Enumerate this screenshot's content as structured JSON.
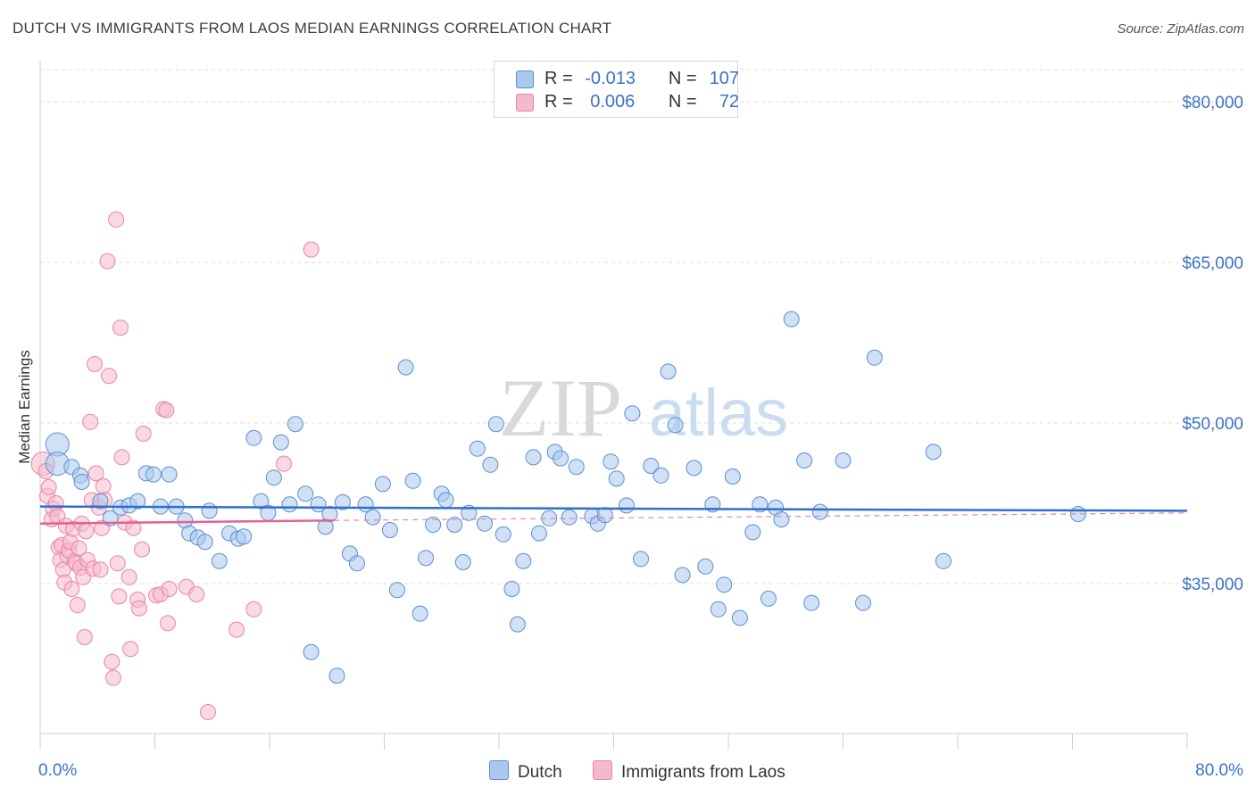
{
  "title": "DUTCH VS IMMIGRANTS FROM LAOS MEDIAN EARNINGS CORRELATION CHART",
  "source": "Source: ZipAtlas.com",
  "watermark": {
    "zip": "ZIP",
    "atlas": "atlas"
  },
  "legend": {
    "rows": [
      {
        "r_label": "R =",
        "r_value": "-0.013",
        "n_label": "N =",
        "n_value": "107"
      },
      {
        "r_label": "R =",
        "r_value": "0.006",
        "n_label": "N =",
        "n_value": "72"
      }
    ]
  },
  "colors": {
    "dutch_fill": "#a9c8ec",
    "dutch_stroke": "#5b8fd1",
    "dutch_line": "#2f6fd0",
    "laos_fill": "#f5b9cc",
    "laos_stroke": "#e884a5",
    "laos_line": "#e5618f",
    "axis_text": "#3b73c4",
    "grid": "#dcdcdc"
  },
  "chart_data": {
    "type": "scatter",
    "title": "DUTCH VS IMMIGRANTS FROM LAOS MEDIAN EARNINGS CORRELATION CHART",
    "xlabel": "",
    "ylabel": "Median Earnings",
    "xlim": [
      0,
      80
    ],
    "ylim": [
      21000,
      83000
    ],
    "x_tick_labels": [
      "0.0%",
      "80.0%"
    ],
    "y_ticks": [
      35000,
      50000,
      65000,
      80000
    ],
    "y_tick_labels": [
      "$35,000",
      "$50,000",
      "$65,000",
      "$80,000"
    ],
    "grid": "horizontal dashed",
    "legend_position": "top-center",
    "series": [
      {
        "name": "Dutch",
        "r": -0.013,
        "n": 107,
        "trend": {
          "x": [
            0,
            80
          ],
          "y": [
            42200,
            41800
          ]
        },
        "points": [
          [
            1.2,
            48000
          ],
          [
            1.2,
            46200
          ],
          [
            2.2,
            45900
          ],
          [
            2.8,
            45100
          ],
          [
            2.9,
            44500
          ],
          [
            4.2,
            42700
          ],
          [
            4.9,
            41100
          ],
          [
            5.6,
            42100
          ],
          [
            6.2,
            42300
          ],
          [
            6.8,
            42700
          ],
          [
            7.4,
            45300
          ],
          [
            7.9,
            45200
          ],
          [
            8.4,
            42200
          ],
          [
            9.0,
            45200
          ],
          [
            9.5,
            42200
          ],
          [
            10.1,
            40900
          ],
          [
            10.4,
            39700
          ],
          [
            11.0,
            39300
          ],
          [
            11.5,
            38900
          ],
          [
            11.8,
            41800
          ],
          [
            12.5,
            37100
          ],
          [
            13.2,
            39700
          ],
          [
            13.8,
            39200
          ],
          [
            14.2,
            39400
          ],
          [
            14.9,
            48600
          ],
          [
            15.4,
            42700
          ],
          [
            15.9,
            41600
          ],
          [
            16.3,
            44900
          ],
          [
            16.8,
            48200
          ],
          [
            17.4,
            42400
          ],
          [
            17.8,
            49900
          ],
          [
            18.5,
            43400
          ],
          [
            18.9,
            28600
          ],
          [
            19.4,
            42400
          ],
          [
            19.9,
            40300
          ],
          [
            20.2,
            41500
          ],
          [
            20.7,
            26400
          ],
          [
            21.1,
            42600
          ],
          [
            21.6,
            37800
          ],
          [
            22.1,
            36900
          ],
          [
            22.7,
            42400
          ],
          [
            23.2,
            41200
          ],
          [
            23.9,
            44300
          ],
          [
            24.4,
            40000
          ],
          [
            24.9,
            34400
          ],
          [
            25.5,
            55200
          ],
          [
            26.0,
            44600
          ],
          [
            26.5,
            32200
          ],
          [
            26.9,
            37400
          ],
          [
            27.4,
            40500
          ],
          [
            28.0,
            43400
          ],
          [
            28.3,
            42800
          ],
          [
            28.9,
            40500
          ],
          [
            29.5,
            37000
          ],
          [
            29.9,
            41600
          ],
          [
            30.5,
            47600
          ],
          [
            31.0,
            40600
          ],
          [
            31.4,
            46100
          ],
          [
            31.8,
            49900
          ],
          [
            32.3,
            39600
          ],
          [
            32.9,
            34500
          ],
          [
            33.3,
            31200
          ],
          [
            33.7,
            37100
          ],
          [
            34.4,
            46800
          ],
          [
            34.8,
            39700
          ],
          [
            35.5,
            41100
          ],
          [
            35.9,
            47300
          ],
          [
            36.3,
            46700
          ],
          [
            36.9,
            41200
          ],
          [
            37.4,
            45900
          ],
          [
            38.5,
            41300
          ],
          [
            38.9,
            40600
          ],
          [
            39.4,
            41400
          ],
          [
            39.8,
            46400
          ],
          [
            40.2,
            44800
          ],
          [
            40.9,
            42300
          ],
          [
            41.3,
            50900
          ],
          [
            41.9,
            37300
          ],
          [
            42.6,
            46000
          ],
          [
            43.3,
            45100
          ],
          [
            43.8,
            54800
          ],
          [
            44.3,
            49800
          ],
          [
            44.8,
            35800
          ],
          [
            45.6,
            45800
          ],
          [
            46.4,
            36600
          ],
          [
            46.9,
            42400
          ],
          [
            47.3,
            32600
          ],
          [
            47.7,
            34900
          ],
          [
            48.3,
            45000
          ],
          [
            48.8,
            31800
          ],
          [
            49.7,
            39800
          ],
          [
            50.2,
            42400
          ],
          [
            50.8,
            33600
          ],
          [
            51.3,
            42100
          ],
          [
            51.7,
            41000
          ],
          [
            52.4,
            59700
          ],
          [
            53.3,
            46500
          ],
          [
            53.8,
            33200
          ],
          [
            54.4,
            41700
          ],
          [
            56.0,
            46500
          ],
          [
            57.4,
            33200
          ],
          [
            58.2,
            56100
          ],
          [
            62.3,
            47300
          ],
          [
            63.0,
            37100
          ],
          [
            72.4,
            41500
          ]
        ]
      },
      {
        "name": "Immigrants from Laos",
        "r": 0.006,
        "n": 72,
        "trend": {
          "x": [
            0,
            20.5
          ],
          "y": [
            40600,
            40900
          ]
        },
        "points": [
          [
            0.2,
            46200
          ],
          [
            0.4,
            45500
          ],
          [
            0.5,
            43200
          ],
          [
            0.6,
            44000
          ],
          [
            0.8,
            41000
          ],
          [
            0.9,
            42000
          ],
          [
            1.1,
            42500
          ],
          [
            1.2,
            41300
          ],
          [
            1.3,
            38400
          ],
          [
            1.4,
            37200
          ],
          [
            1.5,
            38600
          ],
          [
            1.6,
            36300
          ],
          [
            1.7,
            35100
          ],
          [
            1.8,
            40400
          ],
          [
            1.9,
            37600
          ],
          [
            2.0,
            38100
          ],
          [
            2.1,
            38900
          ],
          [
            2.2,
            34500
          ],
          [
            2.3,
            40100
          ],
          [
            2.4,
            37100
          ],
          [
            2.5,
            36900
          ],
          [
            2.6,
            33000
          ],
          [
            2.7,
            38300
          ],
          [
            2.8,
            36500
          ],
          [
            2.9,
            40600
          ],
          [
            3.0,
            35600
          ],
          [
            3.1,
            30000
          ],
          [
            3.2,
            39900
          ],
          [
            3.3,
            37200
          ],
          [
            3.5,
            50100
          ],
          [
            3.6,
            42800
          ],
          [
            3.7,
            36400
          ],
          [
            3.8,
            55500
          ],
          [
            3.9,
            45300
          ],
          [
            4.1,
            42100
          ],
          [
            4.2,
            36300
          ],
          [
            4.3,
            40200
          ],
          [
            4.4,
            44100
          ],
          [
            4.5,
            42800
          ],
          [
            4.7,
            65100
          ],
          [
            4.8,
            54400
          ],
          [
            5.0,
            27700
          ],
          [
            5.1,
            26200
          ],
          [
            5.3,
            69000
          ],
          [
            5.4,
            36900
          ],
          [
            5.5,
            33800
          ],
          [
            5.6,
            58900
          ],
          [
            5.7,
            46800
          ],
          [
            5.9,
            40700
          ],
          [
            6.2,
            35600
          ],
          [
            6.3,
            28900
          ],
          [
            6.5,
            40200
          ],
          [
            6.8,
            33500
          ],
          [
            6.9,
            32700
          ],
          [
            7.1,
            38200
          ],
          [
            7.2,
            49000
          ],
          [
            8.1,
            33900
          ],
          [
            8.4,
            34000
          ],
          [
            8.6,
            51300
          ],
          [
            8.8,
            51200
          ],
          [
            8.9,
            31300
          ],
          [
            9.0,
            34500
          ],
          [
            10.2,
            34700
          ],
          [
            10.9,
            34000
          ],
          [
            11.7,
            23000
          ],
          [
            13.7,
            30700
          ],
          [
            14.9,
            32600
          ],
          [
            17.0,
            46200
          ],
          [
            18.9,
            66200
          ]
        ]
      }
    ]
  },
  "bottom_legend": {
    "dutch": "Dutch",
    "laos": "Immigrants from Laos"
  }
}
